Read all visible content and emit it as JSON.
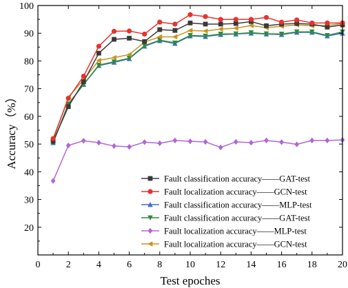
{
  "chart_data": {
    "type": "line",
    "title": "",
    "xlabel": "Test epoches",
    "ylabel": "Accuracy（%）",
    "xlim": [
      0,
      20
    ],
    "ylim": [
      10,
      100
    ],
    "xticks": [
      0,
      2,
      4,
      6,
      8,
      10,
      12,
      14,
      16,
      18,
      20
    ],
    "yticks": [
      20,
      30,
      40,
      50,
      60,
      70,
      80,
      90,
      100
    ],
    "xtick_labels": [
      "0",
      "2",
      "4",
      "6",
      "8",
      "10",
      "12",
      "14",
      "16",
      "18",
      "20"
    ],
    "ytick_labels": [
      "20",
      "30",
      "40",
      "50",
      "60",
      "70",
      "80",
      "90",
      "100"
    ],
    "grid": false,
    "legend_position": "bottom-right",
    "x": [
      1,
      2,
      3,
      4,
      5,
      6,
      7,
      8,
      9,
      10,
      11,
      12,
      13,
      14,
      15,
      16,
      17,
      18,
      19,
      20
    ],
    "series": [
      {
        "name": "Fault classification accuracy——GAT-test",
        "color": "#3a3a3a",
        "marker": "square",
        "values": [
          51.0,
          63.5,
          72.5,
          82.8,
          87.8,
          88.2,
          87.0,
          91.3,
          91.0,
          93.7,
          93.3,
          93.3,
          93.5,
          94.2,
          92.7,
          93.3,
          93.5,
          93.3,
          92.2,
          93.0
        ]
      },
      {
        "name": "Fault localization accuracy——GCN-test",
        "color": "#e8322d",
        "marker": "circle",
        "values": [
          52.0,
          66.5,
          74.5,
          85.3,
          90.7,
          90.8,
          89.7,
          94.0,
          93.3,
          96.7,
          96.0,
          95.0,
          95.0,
          95.0,
          95.7,
          94.0,
          94.8,
          93.7,
          93.7,
          93.7
        ]
      },
      {
        "name": "Fault classification accuracy——MLP-test",
        "color": "#3c6fc7",
        "marker": "triangle-up",
        "values": [
          50.5,
          64.5,
          71.5,
          78.3,
          79.5,
          80.8,
          85.3,
          87.3,
          86.3,
          89.0,
          88.8,
          89.5,
          89.7,
          90.0,
          89.7,
          89.5,
          90.3,
          90.3,
          89.0,
          90.0
        ]
      },
      {
        "name": "Fault classification accuracy——GAT-test",
        "color": "#2e8b3e",
        "marker": "triangle-down",
        "values": [
          50.5,
          64.5,
          71.5,
          78.5,
          79.7,
          81.0,
          85.5,
          87.5,
          86.5,
          89.2,
          89.0,
          89.7,
          89.8,
          90.2,
          89.8,
          89.7,
          90.5,
          90.5,
          89.2,
          90.5
        ]
      },
      {
        "name": "Fault localization accuracy——MLP-test",
        "color": "#b066d6",
        "marker": "diamond",
        "values": [
          36.7,
          49.5,
          51.2,
          50.5,
          49.3,
          49.0,
          50.7,
          50.3,
          51.3,
          51.0,
          50.8,
          48.8,
          50.8,
          50.5,
          51.3,
          50.7,
          49.9,
          51.3,
          51.3,
          51.5
        ]
      },
      {
        "name": "Fault localization accuracy——GCN-test",
        "color": "#c8941a",
        "marker": "triangle-left",
        "values": [
          51.5,
          67.0,
          73.2,
          80.2,
          81.2,
          82.3,
          86.8,
          88.7,
          88.7,
          91.0,
          90.8,
          91.5,
          91.8,
          92.8,
          92.0,
          92.5,
          93.0,
          92.7,
          92.8,
          93.5
        ]
      }
    ]
  }
}
